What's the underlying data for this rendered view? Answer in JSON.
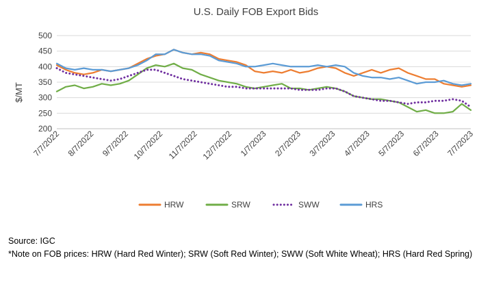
{
  "chart_data": {
    "type": "line",
    "title": "U.S. Daily FOB Export Bids",
    "ylabel": "$/MT",
    "xlabel": "",
    "ylim": [
      200,
      500
    ],
    "yticks": [
      200,
      250,
      300,
      350,
      400,
      450,
      500
    ],
    "x_tick_labels": [
      "7/7/2022",
      "8/7/2022",
      "9/7/2022",
      "10/7/2022",
      "11/7/2022",
      "12/7/2022",
      "1/7/2023",
      "2/7/2023",
      "3/7/2023",
      "4/7/2023",
      "5/7/2023",
      "6/7/2023",
      "7/7/2023"
    ],
    "grid": true,
    "legend_position": "bottom",
    "series": [
      {
        "name": "HRW",
        "color": "#ED7D31",
        "style": "solid",
        "values": [
          405,
          390,
          380,
          375,
          380,
          390,
          385,
          390,
          395,
          410,
          425,
          435,
          440,
          455,
          445,
          440,
          445,
          440,
          425,
          420,
          415,
          405,
          385,
          380,
          385,
          380,
          390,
          380,
          385,
          395,
          400,
          395,
          380,
          370,
          380,
          390,
          380,
          390,
          395,
          380,
          370,
          360,
          360,
          345,
          340,
          335,
          340
        ]
      },
      {
        "name": "SRW",
        "color": "#70AD47",
        "style": "solid",
        "values": [
          320,
          335,
          340,
          330,
          335,
          345,
          340,
          345,
          355,
          375,
          395,
          405,
          400,
          410,
          395,
          390,
          375,
          365,
          355,
          350,
          345,
          335,
          330,
          335,
          340,
          345,
          330,
          330,
          325,
          330,
          335,
          330,
          320,
          305,
          300,
          295,
          295,
          290,
          285,
          270,
          255,
          260,
          250,
          250,
          255,
          280,
          260
        ]
      },
      {
        "name": "SWW",
        "color": "#7030A0",
        "style": "dotted",
        "values": [
          395,
          380,
          375,
          370,
          365,
          360,
          355,
          360,
          370,
          380,
          390,
          390,
          380,
          370,
          360,
          355,
          350,
          345,
          340,
          335,
          335,
          330,
          330,
          330,
          330,
          330,
          330,
          325,
          325,
          325,
          330,
          330,
          320,
          305,
          300,
          295,
          290,
          290,
          285,
          280,
          285,
          285,
          290,
          290,
          295,
          290,
          270
        ]
      },
      {
        "name": "HRS",
        "color": "#5B9BD5",
        "style": "solid",
        "values": [
          410,
          395,
          390,
          395,
          390,
          390,
          385,
          390,
          395,
          405,
          420,
          440,
          440,
          455,
          445,
          440,
          440,
          435,
          420,
          415,
          410,
          400,
          400,
          405,
          410,
          405,
          400,
          400,
          400,
          405,
          400,
          405,
          400,
          380,
          370,
          365,
          365,
          360,
          365,
          355,
          345,
          350,
          350,
          355,
          345,
          340,
          345
        ]
      }
    ]
  },
  "notes": {
    "source": "Source: IGC",
    "footnote": "*Note on FOB prices: HRW (Hard Red Winter); SRW (Soft Red Winter); SWW (Soft White Wheat); HRS (Hard Red Spring)"
  }
}
